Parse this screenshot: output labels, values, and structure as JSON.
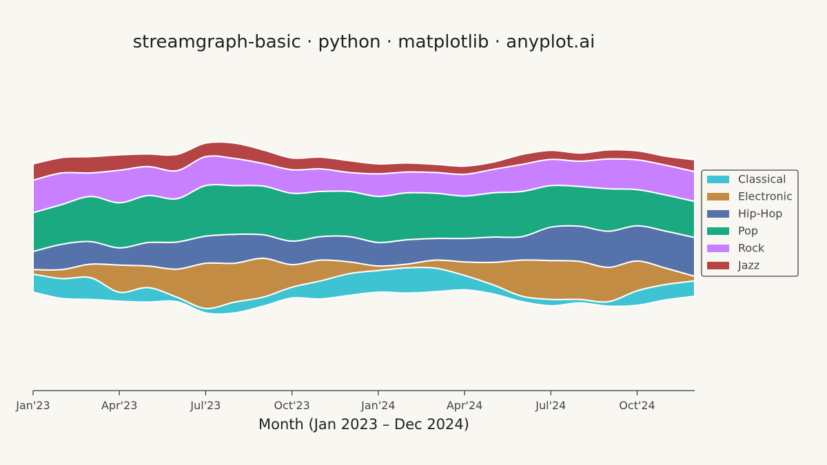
{
  "chart_data": {
    "type": "area",
    "subtype": "streamgraph",
    "title": "streamgraph-basic · python · matplotlib · anyplot.ai",
    "xlabel": "Month (Jan 2023 – Dec 2024)",
    "ylabel": "",
    "x_tick_labels": [
      "Jan'23",
      "Apr'23",
      "Jul'23",
      "Oct'23",
      "Jan'24",
      "Apr'24",
      "Jul'24",
      "Oct'24"
    ],
    "x_tick_months": [
      0,
      3,
      6,
      9,
      12,
      15,
      18,
      21
    ],
    "x_months": [
      "2023-01",
      "2023-02",
      "2023-03",
      "2023-04",
      "2023-05",
      "2023-06",
      "2023-07",
      "2023-08",
      "2023-09",
      "2023-10",
      "2023-11",
      "2023-12",
      "2024-01",
      "2024-02",
      "2024-03",
      "2024-04",
      "2024-05",
      "2024-06",
      "2024-07",
      "2024-08",
      "2024-09",
      "2024-10",
      "2024-11",
      "2024-12"
    ],
    "ylim": [
      -18,
      18
    ],
    "y_axis_visible": false,
    "grid": false,
    "baseline": "symmetric (wiggle)",
    "legend_position": "center-right",
    "series": [
      {
        "name": "Classical",
        "color": "#3EC3D3",
        "values": [
          2.0,
          2.2,
          2.4,
          1.0,
          1.6,
          0.5,
          0.5,
          1.2,
          1.0,
          1.2,
          2.0,
          2.4,
          2.4,
          2.8,
          2.6,
          1.6,
          1.0,
          0.6,
          0.7,
          0.4,
          0.5,
          1.6,
          1.7,
          1.7
        ]
      },
      {
        "name": "Electronic",
        "color": "#C38C44",
        "values": [
          0.5,
          1.0,
          1.5,
          3.0,
          2.4,
          3.1,
          5.0,
          4.3,
          4.3,
          2.5,
          2.3,
          1.3,
          0.5,
          0.4,
          0.9,
          1.5,
          2.5,
          4.0,
          4.3,
          4.2,
          3.8,
          3.3,
          1.8,
          0.5
        ]
      },
      {
        "name": "Hip-Hop",
        "color": "#5573AA",
        "values": [
          2.0,
          2.8,
          2.5,
          1.9,
          2.6,
          3.0,
          3.0,
          3.2,
          2.6,
          2.6,
          2.6,
          2.8,
          2.6,
          2.7,
          2.4,
          2.6,
          2.8,
          2.6,
          3.7,
          3.9,
          4.0,
          3.9,
          4.1,
          4.3
        ]
      },
      {
        "name": "Pop",
        "color": "#1AA980",
        "values": [
          4.3,
          4.4,
          5.0,
          5.0,
          5.2,
          4.8,
          5.6,
          5.4,
          5.4,
          5.3,
          5.0,
          5.0,
          5.1,
          5.2,
          5.0,
          4.7,
          4.9,
          5.0,
          4.6,
          4.4,
          4.7,
          4.0,
          4.0,
          4.0
        ]
      },
      {
        "name": "Rock",
        "color": "#C880FF",
        "values": [
          3.6,
          3.5,
          2.6,
          3.6,
          3.2,
          3.1,
          3.2,
          3.0,
          2.5,
          2.6,
          2.5,
          2.1,
          2.5,
          2.3,
          2.3,
          2.4,
          2.6,
          3.0,
          2.9,
          2.8,
          3.3,
          3.3,
          3.3,
          3.3
        ]
      },
      {
        "name": "Jazz",
        "color": "#B54445",
        "values": [
          1.8,
          1.7,
          1.8,
          1.7,
          1.4,
          1.8,
          1.5,
          1.7,
          1.5,
          1.3,
          1.3,
          1.3,
          1.1,
          1.0,
          0.9,
          0.9,
          0.8,
          1.1,
          1.0,
          0.9,
          1.0,
          1.0,
          1.0,
          1.3
        ]
      }
    ]
  }
}
